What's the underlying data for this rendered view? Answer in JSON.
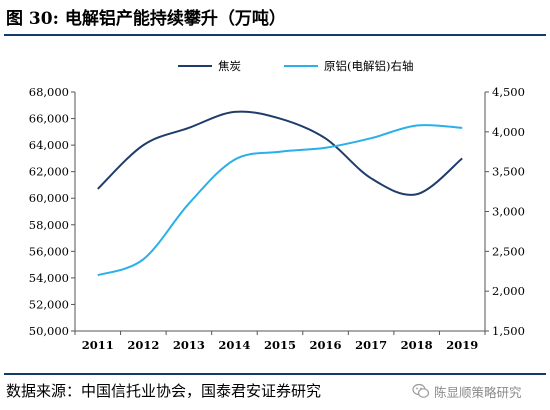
{
  "header": {
    "figure_label": "图 30:",
    "title": "电解铝产能持续攀升（万吨）"
  },
  "footer": {
    "source": "数据来源：中国信托业协会，国泰君安证券研究",
    "watermark": "陈显顺策略研究"
  },
  "chart_data": {
    "type": "line",
    "x": [
      "2011",
      "2012",
      "2013",
      "2014",
      "2015",
      "2016",
      "2017",
      "2018",
      "2019"
    ],
    "y_left": {
      "min": 50000,
      "max": 68000,
      "step": 2000,
      "ticks": [
        "50,000",
        "52,000",
        "54,000",
        "56,000",
        "58,000",
        "60,000",
        "62,000",
        "64,000",
        "66,000",
        "68,000"
      ]
    },
    "y_right": {
      "min": 1500,
      "max": 4500,
      "step": 500,
      "ticks": [
        "1,500",
        "2,000",
        "2,500",
        "3,000",
        "3,500",
        "4,000",
        "4,500"
      ]
    },
    "legend_position": "top-center",
    "grid": false,
    "series": [
      {
        "name": "焦炭",
        "axis": "left",
        "color": "#1f3d6b",
        "values": [
          60700,
          64000,
          65300,
          66500,
          66000,
          64500,
          61500,
          60300,
          63000
        ]
      },
      {
        "name": "原铝(电解铝)右轴",
        "axis": "right",
        "color": "#29b0e8",
        "values": [
          2200,
          2400,
          3100,
          3650,
          3750,
          3800,
          3920,
          4080,
          4050
        ]
      }
    ]
  }
}
